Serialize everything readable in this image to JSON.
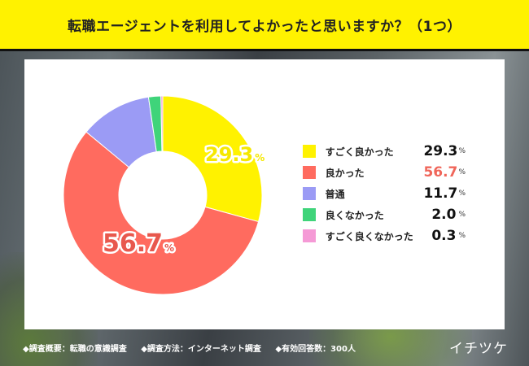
{
  "header": {
    "title": "転職エージェントを利用してよかったと思いますか？（1つ）"
  },
  "chart_data": {
    "type": "pie",
    "donut": true,
    "title": "転職エージェントを利用してよかったと思いますか？（1つ）",
    "categories": [
      "すごく良かった",
      "良かった",
      "普通",
      "良くなかった",
      "すごく良くなかった"
    ],
    "values": [
      29.3,
      56.7,
      11.7,
      2.0,
      0.3
    ],
    "colors": [
      "#fff200",
      "#ff6b5f",
      "#9b9bf5",
      "#3fd47a",
      "#f59ad6"
    ],
    "unit": "%",
    "value_labels": [
      {
        "text": "29.3",
        "unit": "%"
      },
      {
        "text": "56.7",
        "unit": "%"
      }
    ],
    "legend_position": "right",
    "legend": [
      {
        "label": "すごく良かった",
        "value": "29.3",
        "unit": "%"
      },
      {
        "label": "良かった",
        "value": "56.7",
        "unit": "%",
        "highlight": "#f0665a"
      },
      {
        "label": "普通",
        "value": "11.7",
        "unit": "%"
      },
      {
        "label": "良くなかった",
        "value": "2.0",
        "unit": "%"
      },
      {
        "label": "すごく良くなかった",
        "value": "0.3",
        "unit": "%"
      }
    ]
  },
  "footer": {
    "items": [
      "◆調査概要：転職の意識調査",
      "◆調査方法：インターネット調査",
      "◆有効回答数：300人"
    ],
    "logo": "イチツケ"
  }
}
